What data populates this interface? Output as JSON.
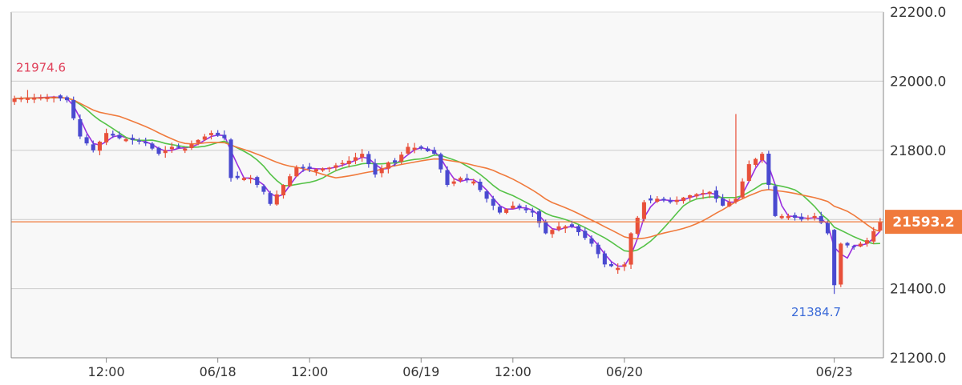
{
  "chart_data": {
    "type": "candlestick",
    "grid": true,
    "ylim": [
      21200,
      22200
    ],
    "y_ticks": [
      "22200.0",
      "22000.0",
      "21800.0",
      "21600.0",
      "21400.0",
      "21200.0"
    ],
    "x_ticks": [
      "12:00",
      "06/18",
      "12:00",
      "06/19",
      "12:00",
      "06/20",
      "06/23"
    ],
    "x_tick_index": [
      14,
      31,
      45,
      62,
      76,
      93,
      125
    ],
    "candle_count": 133,
    "colors": {
      "up": "#e8503a",
      "down": "#4a4ad0",
      "ma_short": "#9a2fe0",
      "ma_mid": "#55c247",
      "ma_long": "#f07a3c",
      "current_price": "#f07a3c",
      "high_label": "#e0405a",
      "low_label": "#3a6ad8",
      "grid": "#cccccc",
      "plot_bg": "#f8f8f8"
    },
    "high_annotation": {
      "label": "21974.6",
      "value": 21974.6
    },
    "low_annotation": {
      "label": "21384.7",
      "value": 21384.7
    },
    "current_price": {
      "label": "21593.2",
      "value": 21593.2
    },
    "close_anchors": [
      [
        0,
        21950
      ],
      [
        6,
        21955
      ],
      [
        8,
        21945
      ],
      [
        10,
        21840
      ],
      [
        12,
        21800
      ],
      [
        14,
        21850
      ],
      [
        16,
        21835
      ],
      [
        18,
        21830
      ],
      [
        20,
        21820
      ],
      [
        22,
        21790
      ],
      [
        24,
        21810
      ],
      [
        26,
        21805
      ],
      [
        28,
        21830
      ],
      [
        30,
        21850
      ],
      [
        32,
        21835
      ],
      [
        33,
        21720
      ],
      [
        36,
        21720
      ],
      [
        38,
        21680
      ],
      [
        39,
        21645
      ],
      [
        41,
        21700
      ],
      [
        43,
        21750
      ],
      [
        46,
        21745
      ],
      [
        48,
        21750
      ],
      [
        51,
        21770
      ],
      [
        53,
        21790
      ],
      [
        55,
        21730
      ],
      [
        57,
        21765
      ],
      [
        58,
        21765
      ],
      [
        60,
        21810
      ],
      [
        62,
        21805
      ],
      [
        64,
        21790
      ],
      [
        66,
        21700
      ],
      [
        68,
        21720
      ],
      [
        70,
        21710
      ],
      [
        72,
        21660
      ],
      [
        74,
        21620
      ],
      [
        76,
        21640
      ],
      [
        79,
        21620
      ],
      [
        81,
        21560
      ],
      [
        83,
        21580
      ],
      [
        85,
        21580
      ],
      [
        88,
        21530
      ],
      [
        90,
        21470
      ],
      [
        92,
        21460
      ],
      [
        93,
        21470
      ],
      [
        94,
        21560
      ],
      [
        96,
        21650
      ],
      [
        98,
        21660
      ],
      [
        100,
        21650
      ],
      [
        103,
        21670
      ],
      [
        106,
        21680
      ],
      [
        108,
        21640
      ],
      [
        110,
        21660
      ],
      [
        112,
        21760
      ],
      [
        114,
        21790
      ],
      [
        116,
        21610
      ],
      [
        118,
        21610
      ],
      [
        120,
        21600
      ],
      [
        122,
        21610
      ],
      [
        123,
        21590
      ],
      [
        124,
        21560
      ],
      [
        125,
        21410
      ],
      [
        126,
        21530
      ],
      [
        128,
        21520
      ],
      [
        130,
        21540
      ],
      [
        132,
        21593
      ]
    ],
    "series": [
      {
        "name": "",
        "role": "ma_short",
        "period": 3
      },
      {
        "name": "",
        "role": "ma_mid",
        "period": 9
      },
      {
        "name": "",
        "role": "ma_long",
        "period": 17
      }
    ]
  }
}
